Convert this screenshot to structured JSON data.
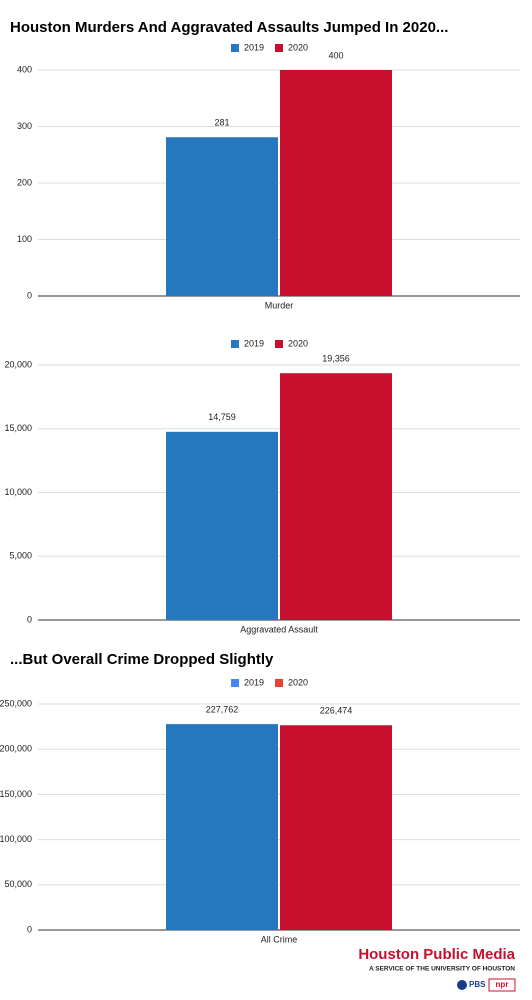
{
  "chart_data": [
    {
      "type": "bar",
      "title": "Houston Murders And Aggravated Assaults Jumped In 2020...",
      "categories": [
        "Murder"
      ],
      "series": [
        {
          "name": "2019",
          "color": "#2678be",
          "values": [
            281
          ]
        },
        {
          "name": "2020",
          "color": "#c8102e",
          "values": [
            400
          ]
        }
      ],
      "ylim": [
        0,
        400
      ],
      "yticks": [
        0,
        100,
        200,
        300,
        400
      ],
      "grid": true,
      "legend": "top"
    },
    {
      "type": "bar",
      "categories": [
        "Aggravated Assault"
      ],
      "series": [
        {
          "name": "2019",
          "color": "#2678be",
          "values": [
            14759
          ],
          "value_labels": [
            "14,759"
          ]
        },
        {
          "name": "2020",
          "color": "#c8102e",
          "values": [
            19356
          ],
          "value_labels": [
            "19,356"
          ]
        }
      ],
      "ylim": [
        0,
        20000
      ],
      "yticks": [
        0,
        {
          "value": 5000,
          "label": "5,000"
        },
        {
          "value": 10000,
          "label": "10,000"
        },
        {
          "value": 15000,
          "label": "15,000"
        },
        {
          "value": 20000,
          "label": "20,000"
        }
      ],
      "grid": true,
      "legend": "top"
    },
    {
      "type": "bar",
      "title": "...But Overall Crime Dropped Slightly",
      "categories": [
        "All Crime"
      ],
      "series": [
        {
          "name": "2019",
          "color": "#2678be",
          "legend_color": "#4285f4",
          "values": [
            227762
          ],
          "value_labels": [
            "227,762"
          ]
        },
        {
          "name": "2020",
          "color": "#c8102e",
          "legend_color": "#ea4335",
          "values": [
            226474
          ],
          "value_labels": [
            "226,474"
          ]
        }
      ],
      "ylim": [
        0,
        250000
      ],
      "yticks": [
        0,
        {
          "value": 50000,
          "label": "50,000"
        },
        {
          "value": 100000,
          "label": "100,000"
        },
        {
          "value": 150000,
          "label": "150,000"
        },
        {
          "value": 200000,
          "label": "200,000"
        },
        {
          "value": 250000,
          "label": "250,000"
        }
      ],
      "grid": true,
      "legend": "top"
    }
  ],
  "branding": {
    "name": "Houston Public Media",
    "tagline": "A SERVICE OF THE UNIVERSITY OF HOUSTON",
    "partners": [
      "PBS",
      "npr"
    ]
  }
}
